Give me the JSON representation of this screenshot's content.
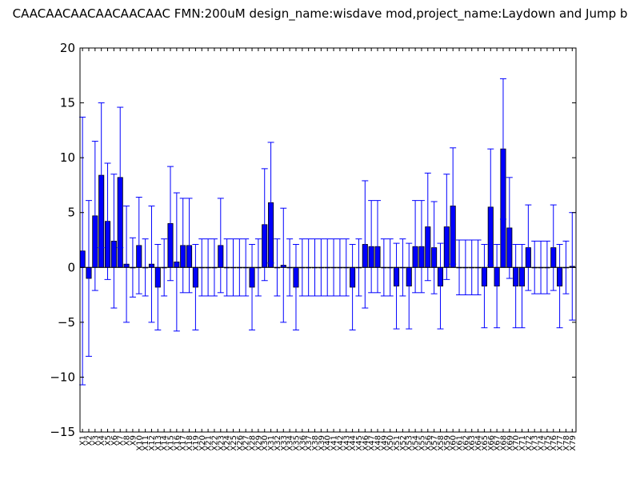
{
  "chart_data": {
    "type": "bar",
    "title": "CAACAACAACAACAACAAC  FMN:200uM  design_name:wisdave mod,project_name:Laydown and Jump b",
    "xlabel": "",
    "ylabel": "",
    "ylim": [
      -15,
      20
    ],
    "yticks": [
      -15,
      -10,
      -5,
      0,
      5,
      10,
      15,
      20
    ],
    "ytick_labels": [
      "−15",
      "−10",
      "−5",
      "0",
      "5",
      "10",
      "15",
      "20"
    ],
    "grid": false,
    "bar_color": "#0000ff",
    "errorbar_color": "#0000ff",
    "categories": [
      "X1",
      "X2",
      "X3",
      "X4",
      "X5",
      "X6",
      "X7",
      "X8",
      "X9",
      "X10",
      "X11",
      "X12",
      "X13",
      "X14",
      "X15",
      "X16",
      "X17",
      "X18",
      "X19",
      "X20",
      "X21",
      "X22",
      "X23",
      "X24",
      "X25",
      "X26",
      "X27",
      "X28",
      "X29",
      "X30",
      "X31",
      "X32",
      "X33",
      "X34",
      "X35",
      "X36",
      "X37",
      "X38",
      "X39",
      "X40",
      "X41",
      "X42",
      "X43",
      "X44",
      "X45",
      "X46",
      "X47",
      "X48",
      "X49",
      "X50",
      "X51",
      "X52",
      "X53",
      "X54",
      "X55",
      "X56",
      "X57",
      "X58",
      "X59",
      "X60",
      "X61",
      "X62",
      "X63",
      "X64",
      "X65",
      "X66",
      "X67",
      "X68",
      "X69",
      "X70",
      "X71",
      "X72",
      "X73",
      "X74",
      "X75",
      "X76",
      "X77",
      "X78",
      "X79"
    ],
    "values": [
      1.5,
      -1.0,
      4.7,
      8.4,
      4.2,
      2.4,
      8.2,
      0.3,
      0,
      2.0,
      0,
      0.3,
      -1.8,
      0,
      4.0,
      0.5,
      2.0,
      2.0,
      -1.8,
      0,
      0,
      0,
      2.0,
      0,
      0,
      0,
      0,
      -1.8,
      0,
      3.9,
      5.9,
      0,
      0.2,
      0,
      -1.8,
      0,
      0,
      0,
      0,
      0,
      0,
      0,
      0,
      -1.8,
      0,
      2.1,
      1.9,
      1.9,
      0,
      0,
      -1.7,
      0,
      -1.7,
      1.9,
      1.9,
      3.7,
      1.8,
      -1.7,
      3.7,
      5.6,
      0,
      0,
      0,
      0,
      -1.7,
      5.5,
      -1.7,
      10.8,
      3.6,
      -1.7,
      -1.7,
      1.8,
      0,
      0,
      0,
      1.8,
      -1.7,
      0,
      0.1
    ],
    "errors": [
      12.2,
      7.1,
      6.8,
      6.6,
      5.3,
      6.1,
      6.4,
      5.3,
      2.7,
      4.4,
      2.6,
      5.3,
      3.9,
      2.6,
      5.2,
      6.3,
      4.3,
      4.3,
      3.9,
      2.6,
      2.6,
      2.6,
      4.3,
      2.6,
      2.6,
      2.6,
      2.6,
      3.9,
      2.6,
      5.1,
      5.5,
      2.6,
      5.2,
      2.6,
      3.9,
      2.6,
      2.6,
      2.6,
      2.6,
      2.6,
      2.6,
      2.6,
      2.6,
      3.9,
      2.6,
      5.8,
      4.2,
      4.2,
      2.6,
      2.6,
      3.9,
      2.6,
      3.9,
      4.2,
      4.2,
      4.9,
      4.2,
      3.9,
      4.8,
      5.3,
      2.5,
      2.5,
      2.5,
      2.5,
      3.8,
      5.3,
      3.8,
      6.4,
      4.6,
      3.8,
      3.8,
      3.9,
      2.4,
      2.4,
      2.4,
      3.9,
      3.8,
      2.4,
      4.9
    ]
  }
}
